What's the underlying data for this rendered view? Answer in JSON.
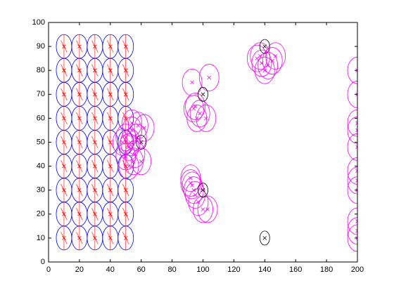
{
  "chart_data": {
    "type": "scatter",
    "xlim": [
      0,
      200
    ],
    "xticks": [
      0,
      20,
      40,
      60,
      80,
      100,
      120,
      140,
      160,
      180,
      200
    ],
    "ylim": [
      0,
      100
    ],
    "yticks": [
      0,
      10,
      20,
      30,
      40,
      50,
      60,
      70,
      80,
      90,
      100
    ],
    "series": [
      {
        "color": "#0000ff",
        "marker_color": "#ff0000",
        "x": [
          10,
          10,
          10,
          10,
          10,
          10,
          10,
          10,
          10,
          20,
          20,
          20,
          20,
          20,
          20,
          20,
          20,
          20,
          30,
          30,
          30,
          30,
          30,
          30,
          30,
          30,
          30,
          40,
          40,
          40,
          40,
          40,
          40,
          40,
          40,
          40,
          50,
          50,
          50,
          50,
          50,
          50,
          50,
          50,
          50
        ],
        "values": [
          10,
          20,
          30,
          40,
          50,
          60,
          70,
          80,
          90,
          10,
          20,
          30,
          40,
          50,
          60,
          70,
          80,
          90,
          10,
          20,
          30,
          40,
          50,
          60,
          70,
          80,
          90,
          10,
          20,
          30,
          40,
          50,
          60,
          70,
          80,
          90,
          10,
          20,
          30,
          40,
          50,
          60,
          70,
          80,
          90
        ]
      },
      {
        "color": "#ff00ff",
        "marker_color": "#ff00ff",
        "x": [
          50,
          52,
          54,
          56,
          53,
          58,
          50,
          55,
          60,
          57,
          48,
          52,
          62,
          54,
          93,
          95,
          98,
          96,
          104,
          102,
          94,
          92,
          93,
          95,
          97,
          100,
          103,
          94,
          92,
          135,
          138,
          142,
          145,
          140,
          137,
          147,
          200,
          200,
          200,
          200,
          200,
          200,
          200,
          200,
          200,
          200,
          200
        ],
        "values": [
          52,
          48,
          55,
          45,
          50,
          57,
          44,
          42,
          42,
          52,
          50,
          40,
          56,
          58,
          75,
          65,
          62,
          60,
          77,
          60,
          64,
          35,
          32,
          28,
          25,
          22,
          22,
          30,
          33,
          85,
          83,
          82,
          84,
          80,
          86,
          86,
          80,
          70,
          58,
          55,
          48,
          38,
          34,
          30,
          17,
          13,
          10
        ]
      },
      {
        "color": "#000000",
        "marker_color": "#000000",
        "x": [
          140,
          140,
          100,
          100,
          60
        ],
        "values": [
          90,
          10,
          70,
          30,
          50
        ]
      }
    ]
  }
}
